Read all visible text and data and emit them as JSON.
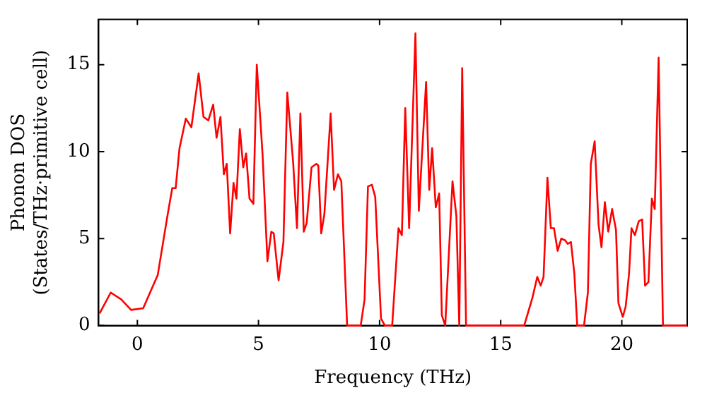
{
  "chart_data": {
    "type": "line",
    "xlabel": "Frequency (THz)",
    "ylabel": "Phonon DOS\n(States/THz·primitive cell)",
    "xlim": [
      -1.6,
      22.7
    ],
    "ylim": [
      0,
      17.6
    ],
    "xticks": [
      0,
      5,
      10,
      15,
      20
    ],
    "yticks": [
      0,
      5,
      10,
      15
    ],
    "grid": false,
    "legend": false,
    "marker": "none",
    "line_style": "solid",
    "series": [
      {
        "color": "#ff0000",
        "x": [
          -1.56,
          -1.1,
          -0.66,
          -0.26,
          0.24,
          0.84,
          1.24,
          1.44,
          1.58,
          1.74,
          2.0,
          2.23,
          2.53,
          2.73,
          2.93,
          3.13,
          3.27,
          3.43,
          3.57,
          3.69,
          3.83,
          3.97,
          4.09,
          4.23,
          4.37,
          4.49,
          4.63,
          4.79,
          4.93,
          5.17,
          5.37,
          5.53,
          5.63,
          5.83,
          6.03,
          6.19,
          6.43,
          6.59,
          6.73,
          6.87,
          6.99,
          7.19,
          7.39,
          7.47,
          7.59,
          7.72,
          7.98,
          8.12,
          8.28,
          8.42,
          8.66,
          9.22,
          9.38,
          9.52,
          9.68,
          9.82,
          10.06,
          10.22,
          10.52,
          10.78,
          10.92,
          11.06,
          11.22,
          11.48,
          11.62,
          11.92,
          12.05,
          12.17,
          12.32,
          12.46,
          12.57,
          12.71,
          13.01,
          13.17,
          13.29,
          13.41,
          13.57,
          15.97,
          16.31,
          16.51,
          16.65,
          16.77,
          16.93,
          17.07,
          17.2,
          17.35,
          17.5,
          17.66,
          17.77,
          17.9,
          18.04,
          18.16,
          18.44,
          18.6,
          18.72,
          18.88,
          19.04,
          19.16,
          19.3,
          19.44,
          19.6,
          19.76,
          19.86,
          20.04,
          20.16,
          20.3,
          20.4,
          20.54,
          20.7,
          20.84,
          20.96,
          21.1,
          21.24,
          21.36,
          21.52,
          21.7,
          22.7
        ],
        "values": [
          0.7,
          1.9,
          1.5,
          0.9,
          1.0,
          2.9,
          6.3,
          7.9,
          7.9,
          10.2,
          11.9,
          11.4,
          14.5,
          12.0,
          11.8,
          12.7,
          10.8,
          12.0,
          8.7,
          9.3,
          5.3,
          8.2,
          7.3,
          11.3,
          9.1,
          9.9,
          7.3,
          7.0,
          15.0,
          9.8,
          3.7,
          5.4,
          5.3,
          2.6,
          4.8,
          13.4,
          9.4,
          5.6,
          12.2,
          5.4,
          5.9,
          9.1,
          9.3,
          9.2,
          5.3,
          6.4,
          12.2,
          7.8,
          8.7,
          8.3,
          0,
          0,
          1.5,
          8.0,
          8.1,
          7.4,
          0.4,
          0,
          0,
          5.6,
          5.2,
          12.5,
          5.6,
          16.8,
          6.6,
          14.0,
          7.8,
          10.2,
          6.8,
          7.6,
          0.6,
          0,
          8.3,
          6.3,
          0,
          14.8,
          0,
          0,
          1.6,
          2.8,
          2.3,
          2.8,
          8.5,
          5.6,
          5.6,
          4.3,
          5.0,
          4.9,
          4.7,
          4.8,
          3.0,
          0,
          0,
          1.9,
          9.3,
          10.6,
          5.8,
          4.5,
          7.1,
          5.4,
          6.7,
          5.5,
          1.3,
          0.5,
          1.1,
          3.0,
          5.6,
          5.2,
          6.0,
          6.1,
          2.3,
          2.5,
          7.3,
          6.7,
          15.4,
          0,
          0
        ]
      }
    ]
  }
}
